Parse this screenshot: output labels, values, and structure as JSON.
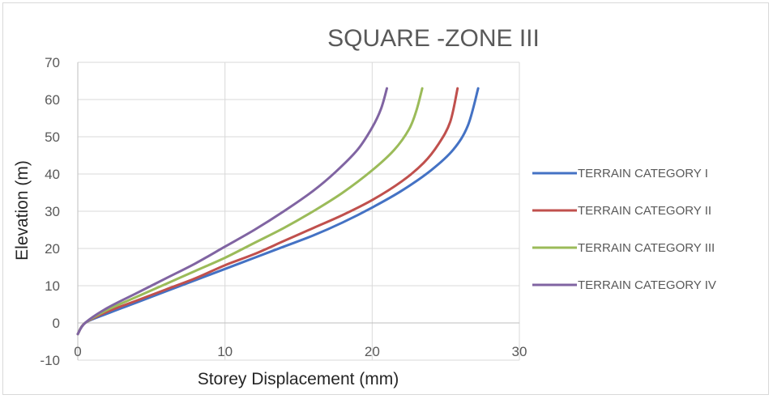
{
  "chart_data": {
    "type": "line",
    "title": "SQUARE -ZONE III",
    "xlabel": "Storey Displacement (mm)",
    "ylabel": "Elevation (m)",
    "xlim": [
      0,
      30
    ],
    "ylim": [
      -10,
      70
    ],
    "x_ticks": [
      "0",
      "10",
      "20",
      "30"
    ],
    "y_ticks": [
      "-10",
      "0",
      "10",
      "20",
      "30",
      "40",
      "50",
      "60",
      "70"
    ],
    "grid": true,
    "legend_position": "right",
    "series": [
      {
        "name": "TERRAIN CATEGORY I",
        "color": "#4472c4",
        "x": [
          0,
          0.5,
          2,
          4,
          6,
          8,
          10,
          12,
          14,
          16,
          18,
          20,
          22,
          24,
          25.5,
          26.5,
          27.2
        ],
        "y": [
          -3,
          0,
          2.5,
          5.5,
          8.5,
          11.5,
          14.5,
          17.5,
          20.5,
          23.5,
          27,
          31,
          35.5,
          41,
          46.5,
          53,
          63
        ]
      },
      {
        "name": "TERRAIN CATEGORY II",
        "color": "#c0504d",
        "x": [
          0,
          0.5,
          2,
          4,
          6,
          8,
          10,
          12,
          14,
          16,
          18,
          20,
          22,
          23.5,
          24.5,
          25.3,
          25.8
        ],
        "y": [
          -3,
          0,
          3,
          6,
          9,
          12,
          15.5,
          18.5,
          22,
          25.5,
          29,
          33,
          38,
          43,
          48,
          54,
          63
        ]
      },
      {
        "name": "TERRAIN CATEGORY III",
        "color": "#9bbb59",
        "x": [
          0,
          0.5,
          2,
          4,
          6,
          8,
          10,
          12,
          14,
          16,
          18,
          20,
          21.5,
          22.5,
          23,
          23.4
        ],
        "y": [
          -3,
          0,
          3.5,
          7,
          10.5,
          14,
          17.5,
          21.5,
          25.5,
          30,
          35,
          41,
          46.5,
          52,
          57,
          63
        ]
      },
      {
        "name": "TERRAIN CATEGORY IV",
        "color": "#8064a2",
        "x": [
          0,
          0.5,
          2,
          4,
          6,
          8,
          10,
          12,
          14,
          16,
          17.5,
          19,
          20,
          20.6,
          21
        ],
        "y": [
          -3,
          0,
          4,
          8,
          12,
          16,
          20.5,
          25,
          30,
          35.5,
          40.5,
          46.5,
          52.5,
          57.5,
          63
        ]
      }
    ]
  }
}
